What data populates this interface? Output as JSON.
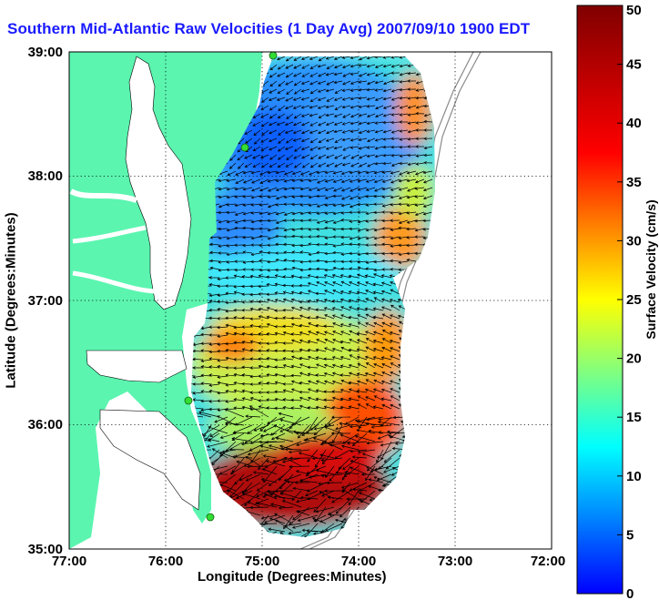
{
  "chart_data": {
    "type": "heatmap",
    "title": "Southern Mid-Atlantic Raw Velocities (1 Day Avg) 2007/09/10 1900 EDT",
    "xlabel": "Longitude (Degrees:Minutes)",
    "ylabel": "Latitude (Degrees:Minutes)",
    "colorbar_label": "Surface Velocity (cm/s)",
    "x_ticks": [
      "77:00",
      "76:00",
      "75:00",
      "74:00",
      "73:00",
      "72:00"
    ],
    "y_ticks": [
      "39:00",
      "38:00",
      "37:00",
      "36:00",
      "35:00"
    ],
    "colorbar_ticks": [
      "50",
      "45",
      "40",
      "35",
      "30",
      "25",
      "20",
      "15",
      "10",
      "5",
      "0"
    ],
    "xlim": [
      -77.0,
      -72.0
    ],
    "ylim": [
      35.0,
      39.0
    ],
    "clim": [
      0,
      50
    ],
    "grid": "dotted",
    "regions": [
      {
        "name": "north-blue-band",
        "lon": -74.5,
        "lat": 38.3,
        "speed": 7
      },
      {
        "name": "mid-cyan-band",
        "lon": -74.3,
        "lat": 37.3,
        "speed": 13
      },
      {
        "name": "east-orange-edge",
        "lon": -73.5,
        "lat": 37.5,
        "speed": 30
      },
      {
        "name": "central-yellow-green",
        "lon": -74.7,
        "lat": 36.6,
        "speed": 22
      },
      {
        "name": "southern-red",
        "lon": -74.7,
        "lat": 35.4,
        "speed": 46
      }
    ]
  }
}
